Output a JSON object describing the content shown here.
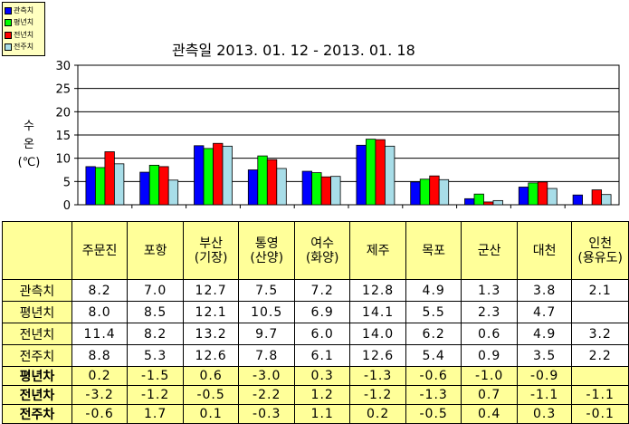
{
  "chart_data": {
    "type": "bar",
    "title": "관측일 2013. 01. 12 -  2013. 01. 18",
    "ylabel_lines": [
      "수",
      "온",
      "(℃)"
    ],
    "ylim": [
      0,
      30
    ],
    "yticks": [
      "0",
      "5",
      "10",
      "15",
      "20",
      "25",
      "30"
    ],
    "grid": true,
    "legend_position": "top-left",
    "categories": [
      "주문진",
      "포항",
      "부산(기장)",
      "통영(산양)",
      "여수(화양)",
      "제주",
      "목포",
      "군산",
      "대천",
      "인천(용유도)"
    ],
    "series": [
      {
        "name": "관측치",
        "color": "#0000ff",
        "values": [
          8.2,
          7.0,
          12.7,
          7.5,
          7.2,
          12.8,
          4.9,
          1.3,
          3.8,
          2.1
        ]
      },
      {
        "name": "평년치",
        "color": "#00ff00",
        "values": [
          8.0,
          8.5,
          12.1,
          10.5,
          6.9,
          14.1,
          5.5,
          2.3,
          4.7,
          null
        ]
      },
      {
        "name": "전년치",
        "color": "#ff0000",
        "values": [
          11.4,
          8.2,
          13.2,
          9.7,
          6.0,
          14.0,
          6.2,
          0.6,
          4.9,
          3.2
        ]
      },
      {
        "name": "전주치",
        "color": "#a8dde8",
        "values": [
          8.8,
          5.3,
          12.6,
          7.8,
          6.1,
          12.6,
          5.4,
          0.9,
          3.5,
          2.2
        ]
      }
    ]
  },
  "table": {
    "header_lines": [
      [
        "주문진"
      ],
      [
        "포항"
      ],
      [
        "부산",
        "(기장)"
      ],
      [
        "통영",
        "(산양)"
      ],
      [
        "여수",
        "(화양)"
      ],
      [
        "제주"
      ],
      [
        "목포"
      ],
      [
        "군산"
      ],
      [
        "대천"
      ],
      [
        "인천",
        "(용유도)"
      ]
    ],
    "rows": [
      {
        "label": "관측치",
        "values": [
          "8.2",
          "7.0",
          "12.7",
          "7.5",
          "7.2",
          "12.8",
          "4.9",
          "1.3",
          "3.8",
          "2.1"
        ]
      },
      {
        "label": "평년치",
        "values": [
          "8.0",
          "8.5",
          "12.1",
          "10.5",
          "6.9",
          "14.1",
          "5.5",
          "2.3",
          "4.7",
          ""
        ]
      },
      {
        "label": "전년치",
        "values": [
          "11.4",
          "8.2",
          "13.2",
          "9.7",
          "6.0",
          "14.0",
          "6.2",
          "0.6",
          "4.9",
          "3.2"
        ]
      },
      {
        "label": "전주치",
        "values": [
          "8.8",
          "5.3",
          "12.6",
          "7.8",
          "6.1",
          "12.6",
          "5.4",
          "0.9",
          "3.5",
          "2.2"
        ]
      },
      {
        "label": "평년차",
        "values": [
          "0.2",
          "-1.5",
          "0.6",
          "-3.0",
          "0.3",
          "-1.3",
          "-0.6",
          "-1.0",
          "-0.9",
          ""
        ]
      },
      {
        "label": "전년차",
        "values": [
          "-3.2",
          "-1.2",
          "-0.5",
          "-2.2",
          "1.2",
          "-1.2",
          "-1.3",
          "0.7",
          "-1.1",
          "-1.1"
        ]
      },
      {
        "label": "전주차",
        "values": [
          "-0.6",
          "1.7",
          "0.1",
          "-0.3",
          "1.1",
          "0.2",
          "-0.5",
          "0.4",
          "0.3",
          "-0.1"
        ]
      }
    ]
  }
}
